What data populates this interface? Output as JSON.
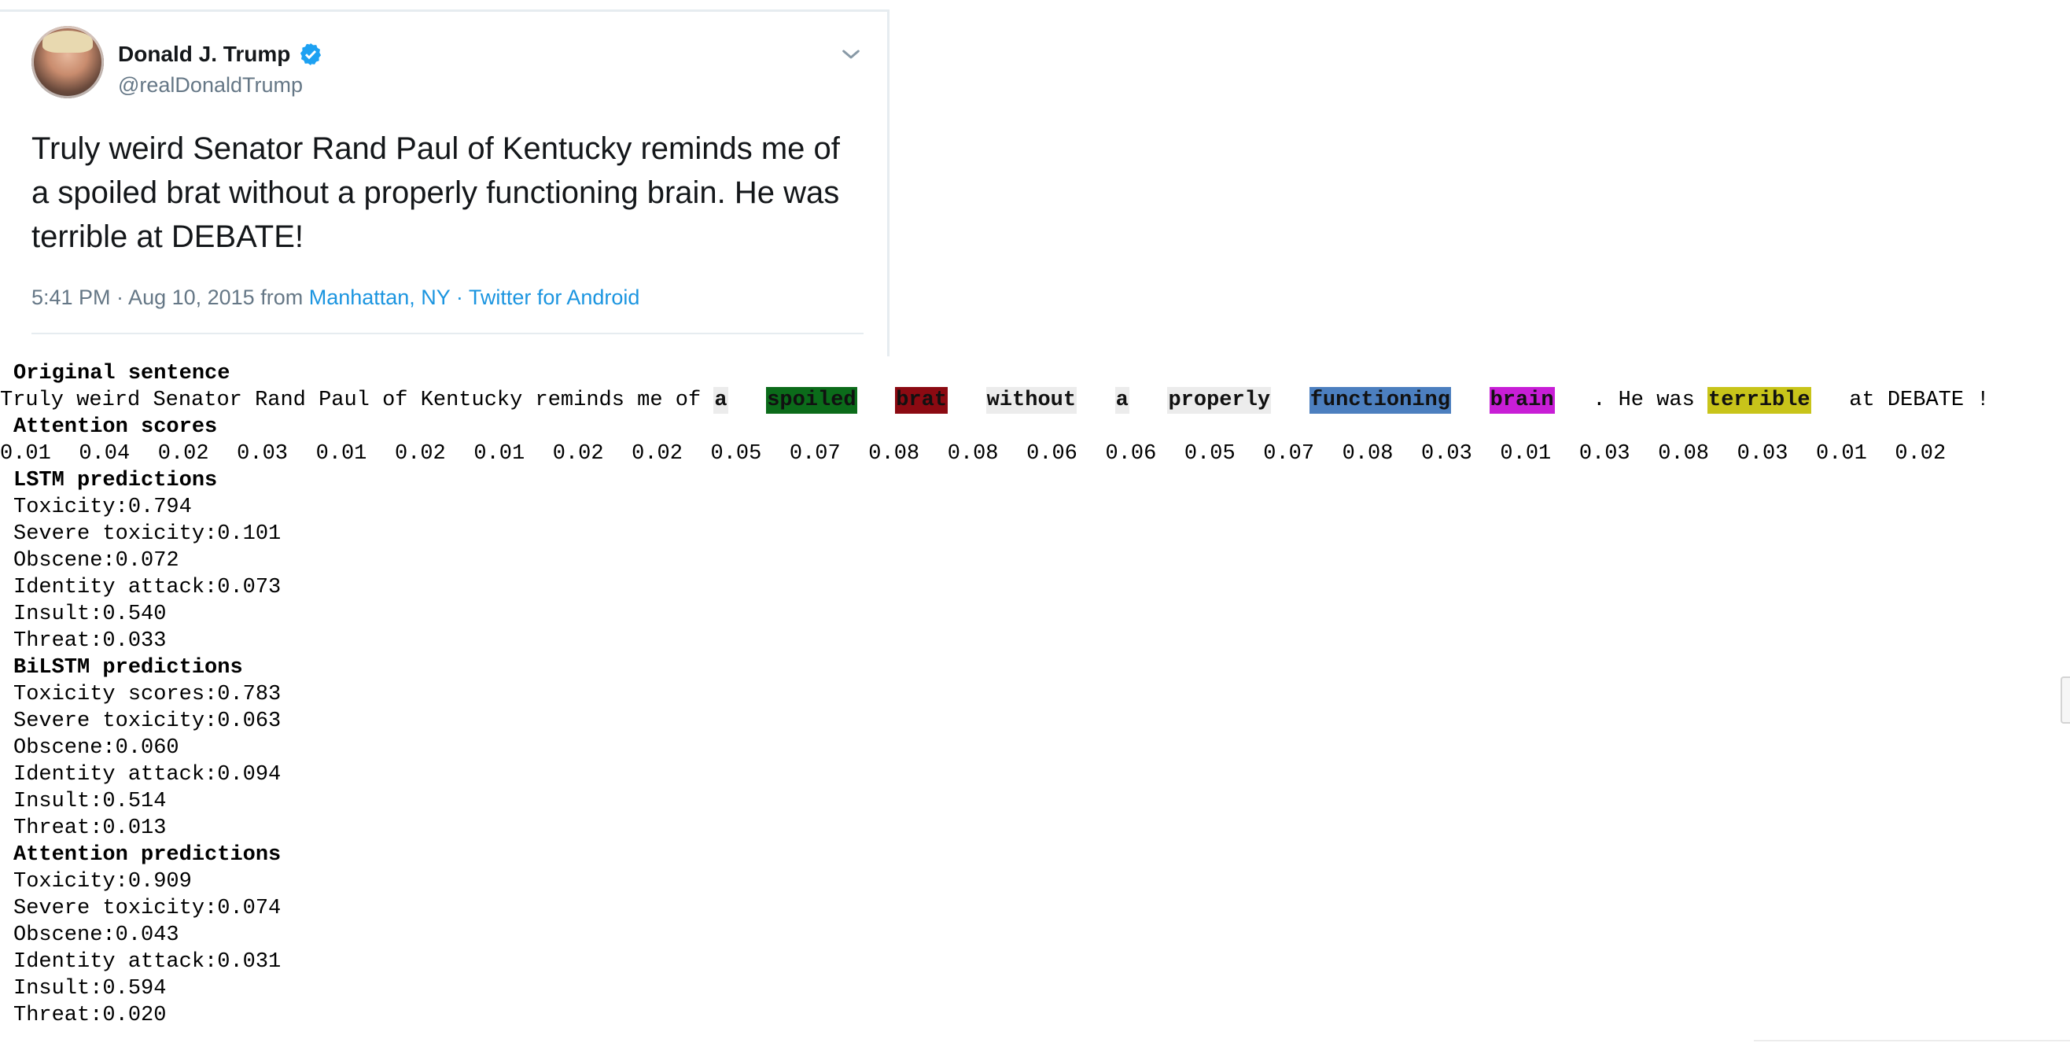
{
  "tweet": {
    "author_name": "Donald J. Trump",
    "handle": "@realDonaldTrump",
    "text": "Truly weird Senator Rand Paul of Kentucky reminds me of a spoiled brat without a properly functioning brain. He was terrible at DEBATE!",
    "time": "5:41 PM · Aug 10, 2015 from ",
    "location": "Manhattan, NY",
    "separator": " · ",
    "source": "Twitter for Android",
    "icons": {
      "avatar": "avatar",
      "verified": "verified-badge-icon",
      "menu": "chevron-down-icon"
    },
    "colors": {
      "link": "#1b95e0",
      "verified": "#1da1f2"
    }
  },
  "output": {
    "original_header": "Original sentence",
    "tokens": [
      {
        "text": "Truly",
        "hl": ""
      },
      {
        "text": "weird",
        "hl": ""
      },
      {
        "text": "Senator",
        "hl": ""
      },
      {
        "text": "Rand",
        "hl": ""
      },
      {
        "text": "Paul",
        "hl": ""
      },
      {
        "text": "of",
        "hl": ""
      },
      {
        "text": "Kentucky",
        "hl": ""
      },
      {
        "text": "reminds",
        "hl": ""
      },
      {
        "text": "me",
        "hl": ""
      },
      {
        "text": "of",
        "hl": ""
      },
      {
        "text": "a",
        "hl": "gray"
      },
      {
        "text": "spoiled",
        "hl": "green"
      },
      {
        "text": "brat",
        "hl": "red"
      },
      {
        "text": "without",
        "hl": "gray"
      },
      {
        "text": "a",
        "hl": "gray"
      },
      {
        "text": "properly",
        "hl": "gray"
      },
      {
        "text": "functioning",
        "hl": "blue"
      },
      {
        "text": "brain",
        "hl": "magenta"
      },
      {
        "text": ".",
        "hl": ""
      },
      {
        "text": "He",
        "hl": ""
      },
      {
        "text": "was",
        "hl": ""
      },
      {
        "text": "terrible",
        "hl": "yellow"
      },
      {
        "text": "at",
        "hl": ""
      },
      {
        "text": "DEBATE",
        "hl": ""
      },
      {
        "text": "!",
        "hl": ""
      }
    ],
    "attention_header": "Attention scores",
    "attention_scores": [
      "0.01",
      "0.04",
      "0.02",
      "0.03",
      "0.01",
      "0.02",
      "0.01",
      "0.02",
      "0.02",
      "0.05",
      "0.07",
      "0.08",
      "0.08",
      "0.06",
      "0.06",
      "0.05",
      "0.07",
      "0.08",
      "0.03",
      "0.01",
      "0.03",
      "0.08",
      "0.03",
      "0.01",
      "0.02"
    ],
    "blocks": [
      {
        "header": "LSTM predictions",
        "lines": [
          "Toxicity:0.794",
          "Severe toxicity:0.101",
          "Obscene:0.072",
          "Identity attack:0.073",
          "Insult:0.540",
          "Threat:0.033"
        ]
      },
      {
        "header": "BiLSTM predictions",
        "lines": [
          "Toxicity scores:0.783",
          "Severe toxicity:0.063",
          "Obscene:0.060",
          "Identity attack:0.094",
          "Insult:0.514",
          "Threat:0.013"
        ]
      },
      {
        "header": "Attention predictions",
        "lines": [
          "Toxicity:0.909",
          "Severe toxicity:0.074",
          "Obscene:0.043",
          "Identity attack:0.031",
          "Insult:0.594",
          "Threat:0.020"
        ]
      }
    ],
    "highlight_colors": {
      "gray": "#ececec",
      "green": "#0b6b1a",
      "red": "#8b0a12",
      "blue": "#4c7fbf",
      "magenta": "#c81ed6",
      "yellow": "#c8c41a"
    }
  }
}
